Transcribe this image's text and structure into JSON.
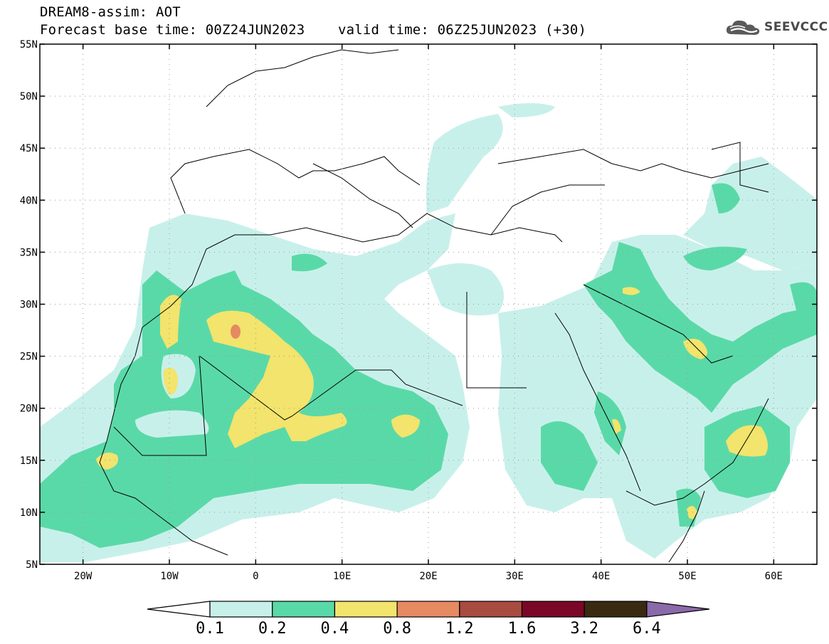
{
  "header": {
    "line1": "DREAM8-assim: AOT",
    "line2": "Forecast base time: 00Z24JUN2023    valid time: 06Z25JUN2023 (+30)",
    "logo_text": "SEEVCCC",
    "logo_icon": "cloud-icon"
  },
  "map": {
    "lat_labels": [
      "55N",
      "50N",
      "45N",
      "40N",
      "35N",
      "30N",
      "25N",
      "20N",
      "15N",
      "10N",
      "5N"
    ],
    "lon_labels": [
      "20W",
      "10W",
      "0",
      "10E",
      "20E",
      "30E",
      "40E",
      "50E",
      "60E"
    ],
    "lat_range": [
      5,
      55
    ],
    "lon_range": [
      -25,
      65
    ],
    "grid": "dotted"
  },
  "colorbar": {
    "labels": [
      "0.1",
      "0.2",
      "0.4",
      "0.8",
      "1.2",
      "1.6",
      "3.2",
      "6.4"
    ],
    "colors": [
      "#ffffff",
      "#c8f0ea",
      "#5ad9a8",
      "#f2e46c",
      "#e68a62",
      "#a84c40",
      "#7a0628",
      "#3a2a12",
      "#8a6aa8"
    ]
  }
}
